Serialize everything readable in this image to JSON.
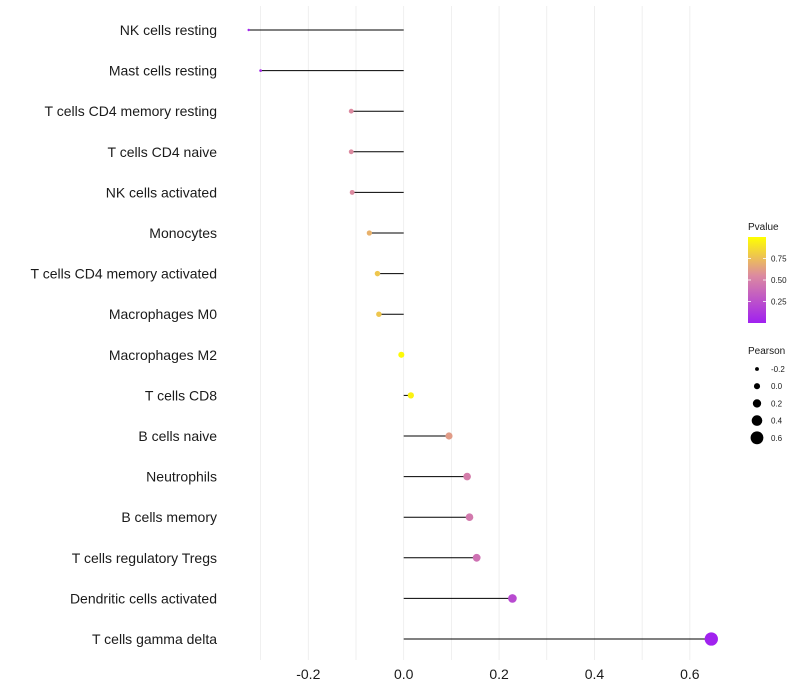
{
  "chart_data": {
    "type": "lollipop",
    "title": "",
    "xlabel": "",
    "ylabel": "",
    "xlim": [
      -0.36,
      0.68
    ],
    "x_ticks": [
      -0.2,
      0.0,
      0.2,
      0.4,
      0.6
    ],
    "x_tick_labels": [
      "-0.2",
      "0.0",
      "0.2",
      "0.4",
      "0.6"
    ],
    "grid": true,
    "points": [
      {
        "label": "NK cells resting",
        "value": -0.325,
        "pvalue": 0.02
      },
      {
        "label": "Mast cells resting",
        "value": -0.3,
        "pvalue": 0.05
      },
      {
        "label": "T cells CD4 memory resting",
        "value": -0.11,
        "pvalue": 0.55
      },
      {
        "label": "T cells CD4 naive",
        "value": -0.11,
        "pvalue": 0.55
      },
      {
        "label": "NK cells activated",
        "value": -0.108,
        "pvalue": 0.55
      },
      {
        "label": "Monocytes",
        "value": -0.072,
        "pvalue": 0.7
      },
      {
        "label": "T cells CD4 memory activated",
        "value": -0.055,
        "pvalue": 0.78
      },
      {
        "label": "Macrophages M0",
        "value": -0.052,
        "pvalue": 0.78
      },
      {
        "label": "Macrophages M2",
        "value": -0.005,
        "pvalue": 0.98
      },
      {
        "label": "T cells CD8",
        "value": 0.015,
        "pvalue": 0.95
      },
      {
        "label": "B cells naive",
        "value": 0.095,
        "pvalue": 0.62
      },
      {
        "label": "Neutrophils",
        "value": 0.133,
        "pvalue": 0.48
      },
      {
        "label": "B cells memory",
        "value": 0.138,
        "pvalue": 0.46
      },
      {
        "label": "T cells regulatory  Tregs ",
        "value": 0.153,
        "pvalue": 0.42
      },
      {
        "label": "Dendritic cells activated",
        "value": 0.228,
        "pvalue": 0.22
      },
      {
        "label": "T cells gamma delta",
        "value": 0.645,
        "pvalue": 0.01
      }
    ],
    "legend": {
      "color": {
        "title": "Pvalue",
        "range": [
          0.0,
          1.0
        ],
        "ticks": [
          0.25,
          0.5,
          0.75
        ],
        "tick_labels": [
          "0.25",
          "0.50",
          "0.75"
        ],
        "low_color": "#a020f0",
        "mid_color": "#dc8aa0",
        "high_color": "#ffff00"
      },
      "size": {
        "title": "Pearson",
        "values": [
          -0.2,
          0.0,
          0.2,
          0.4,
          0.6
        ],
        "labels": [
          "-0.2",
          "0.0",
          "0.2",
          "0.4",
          "0.6"
        ]
      },
      "placement": "right"
    }
  }
}
